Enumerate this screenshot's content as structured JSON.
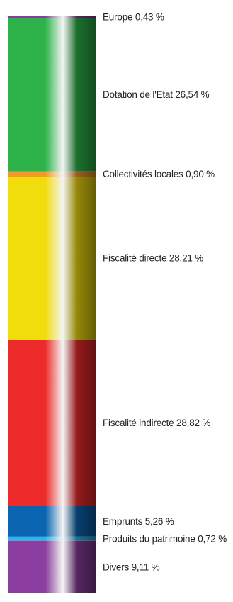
{
  "chart_data": {
    "type": "bar",
    "orientation": "stacked-vertical",
    "title": "",
    "xlabel": "",
    "ylabel": "",
    "unit": "%",
    "segments": [
      {
        "name": "Europe",
        "value": 0.43,
        "value_label": "0,43 %",
        "color": "#8a3d9e"
      },
      {
        "name": "Dotation de l'Etat",
        "value": 26.54,
        "value_label": "26,54 %",
        "color": "#2db34a"
      },
      {
        "name": "Collectivités locales",
        "value": 0.9,
        "value_label": "0,90 %",
        "color": "#f39a2a"
      },
      {
        "name": "Fiscalité directe",
        "value": 28.21,
        "value_label": "28,21 %",
        "color": "#f1dc0c"
      },
      {
        "name": "Fiscalité indirecte",
        "value": 28.82,
        "value_label": "28,82 %",
        "color": "#ee2b2b"
      },
      {
        "name": "Emprunts",
        "value": 5.26,
        "value_label": "5,26 %",
        "color": "#0a64b0"
      },
      {
        "name": "Produits du patrimoine",
        "value": 0.72,
        "value_label": "0,72 %",
        "color": "#29b6ec"
      },
      {
        "name": "Divers",
        "value": 9.11,
        "value_label": "9,11 %",
        "color": "#8b3e9f"
      }
    ]
  }
}
